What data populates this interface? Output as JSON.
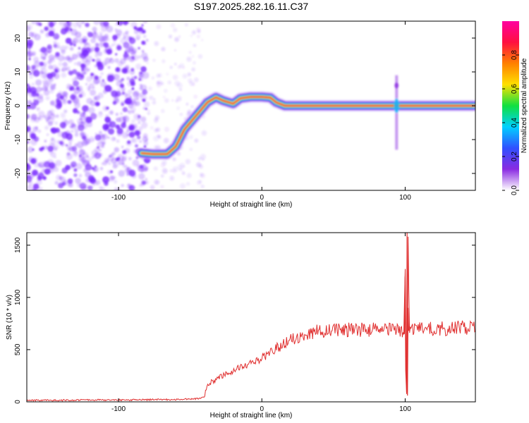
{
  "title": "S197.2025.282.16.11.C37",
  "colors": {
    "snr_line": "#e03030",
    "noise": "#7b2cff",
    "colormap": [
      "#ffffff",
      "#8a2be2",
      "#3050ff",
      "#00d0ff",
      "#10e040",
      "#ffe000",
      "#ff8000",
      "#ff1040",
      "#ff00a0"
    ]
  },
  "chart_data": [
    {
      "type": "heatmap",
      "title": "S197.2025.282.16.11.C37",
      "xlabel": "Height of straight line (km)",
      "ylabel": "Frequency (Hz)",
      "xlim": [
        -164,
        149
      ],
      "ylim": [
        -25,
        25
      ],
      "xticks": [
        -100,
        0,
        100
      ],
      "yticks": [
        -20,
        -10,
        0,
        10,
        20
      ],
      "colorbar": {
        "label": "Normalized spectral amplitude",
        "range": [
          0,
          1
        ],
        "ticks": [
          0.0,
          0.2,
          0.4,
          0.6,
          0.8
        ],
        "tick_labels": [
          "0.0",
          "0.2",
          "0.4",
          "0.6",
          "0.8"
        ]
      },
      "noise_region_km": [
        -164,
        -80
      ],
      "ridge": {
        "x": [
          -84,
          -76,
          -66,
          -60,
          -54,
          -46,
          -38,
          -32,
          -27,
          -20,
          -15,
          -8,
          0,
          6,
          10,
          16,
          25,
          60,
          90,
          100,
          149
        ],
        "y": [
          -14,
          -14.3,
          -14.3,
          -12,
          -7,
          -3,
          1,
          2.5,
          1.5,
          0.6,
          2.2,
          2.6,
          2.6,
          2.4,
          1,
          0,
          0,
          0,
          0,
          0,
          0
        ]
      },
      "spike": {
        "x": 94,
        "y_range": [
          -13,
          9
        ]
      }
    },
    {
      "type": "line",
      "xlabel": "Height of straight line (km)",
      "ylabel": "SNR (10 * v/v)",
      "xlim": [
        -164,
        149
      ],
      "ylim": [
        0,
        1620
      ],
      "xticks": [
        -100,
        0,
        100
      ],
      "yticks": [
        0,
        500,
        1000,
        1500
      ],
      "series": [
        {
          "name": "SNR",
          "x": [
            -164,
            -100,
            -60,
            -45,
            -40,
            -38,
            -30,
            -20,
            -10,
            0,
            10,
            20,
            30,
            40,
            60,
            80,
            95,
            99,
            100,
            101,
            101.5,
            102,
            103,
            110,
            130,
            149
          ],
          "y": [
            15,
            18,
            22,
            30,
            45,
            170,
            230,
            300,
            360,
            420,
            510,
            600,
            650,
            680,
            690,
            690,
            700,
            650,
            1200,
            100,
            60,
            1620,
            680,
            700,
            700,
            720
          ]
        }
      ]
    }
  ]
}
